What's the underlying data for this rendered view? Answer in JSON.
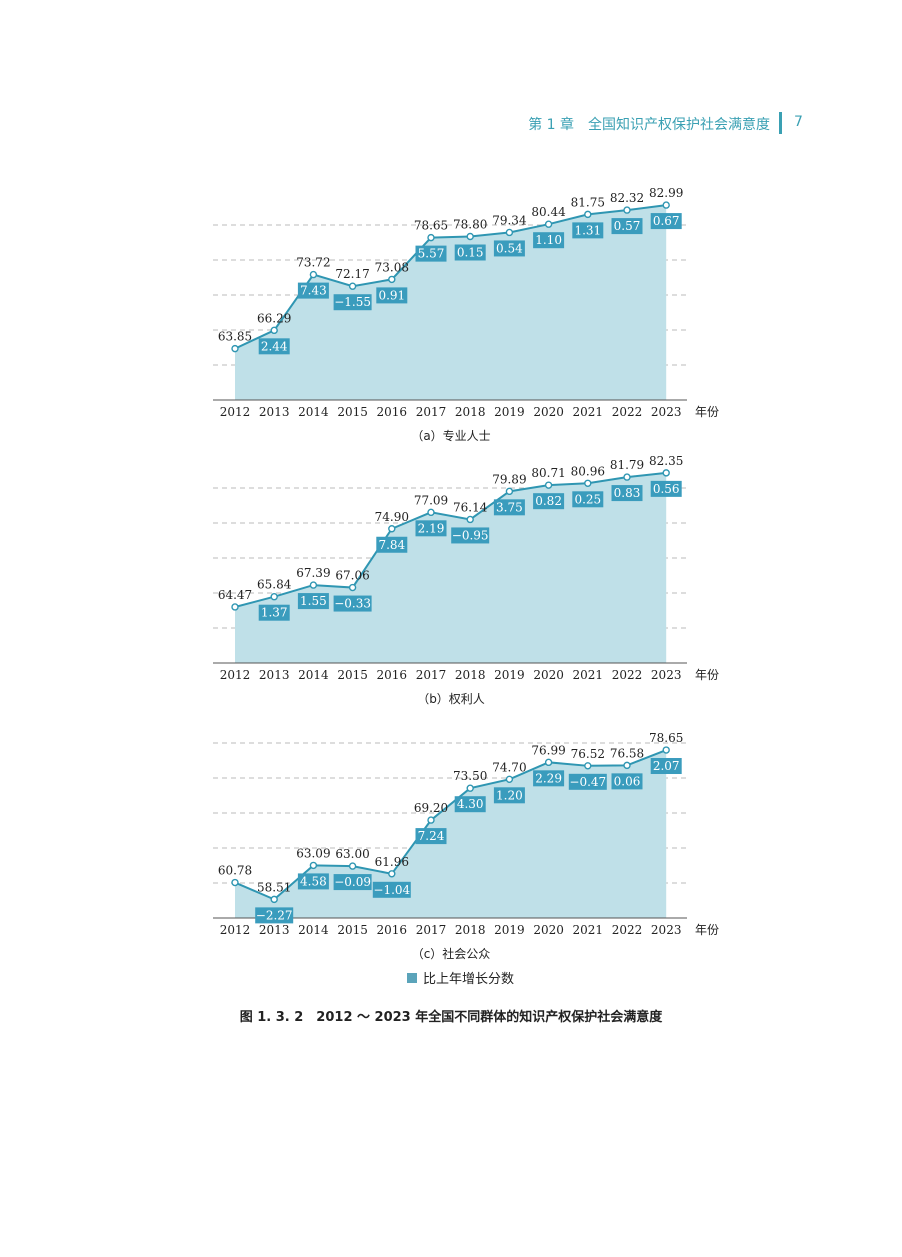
{
  "header": {
    "chapter_text": "第 1 章　全国知识产权保护社会满意度",
    "page_number": "7"
  },
  "legend": {
    "label": "比上年增长分数",
    "color": "#5ba4ba"
  },
  "figure_caption": "图 1. 3. 2　2012 ～ 2023 年全国不同群体的知识产权保护社会满意度",
  "colors": {
    "area_fill": "#bfe0e8",
    "line": "#2f96b2",
    "badge": "#3a9cbd",
    "grid": "#bbbbbb"
  },
  "chart_data": [
    {
      "type": "area",
      "caption": "（a）专业人士",
      "x_unit_label": "年份",
      "x": [
        "2012",
        "2013",
        "2014",
        "2015",
        "2016",
        "2017",
        "2018",
        "2019",
        "2020",
        "2021",
        "2022",
        "2023"
      ],
      "values": [
        63.85,
        66.29,
        73.72,
        72.17,
        73.08,
        78.65,
        78.8,
        79.34,
        80.44,
        81.75,
        82.32,
        82.99
      ],
      "value_labels": [
        "63.85",
        "66.29",
        "73.72",
        "72.17",
        "73.08",
        "78.65",
        "78.80",
        "79.34",
        "80.44",
        "81.75",
        "82.32",
        "82.99"
      ],
      "change_labels": [
        "",
        "2.44",
        "7.43",
        "−1.55",
        "0.91",
        "5.57",
        "0.15",
        "0.54",
        "1.10",
        "1.31",
        "0.57",
        "0.67"
      ],
      "ylim": [
        57,
        83
      ],
      "grid": true
    },
    {
      "type": "area",
      "caption": "（b）权利人",
      "x_unit_label": "年份",
      "x": [
        "2012",
        "2013",
        "2014",
        "2015",
        "2016",
        "2017",
        "2018",
        "2019",
        "2020",
        "2021",
        "2022",
        "2023"
      ],
      "values": [
        64.47,
        65.84,
        67.39,
        67.06,
        74.9,
        77.09,
        76.14,
        79.89,
        80.71,
        80.96,
        81.79,
        82.35
      ],
      "value_labels": [
        "64.47",
        "65.84",
        "67.39",
        "67.06",
        "74.90",
        "77.09",
        "76.14",
        "79.89",
        "80.71",
        "80.96",
        "81.79",
        "82.35"
      ],
      "change_labels": [
        "",
        "1.37",
        "1.55",
        "−0.33",
        "7.84",
        "2.19",
        "−0.95",
        "3.75",
        "0.82",
        "0.25",
        "0.83",
        "0.56"
      ],
      "ylim": [
        57,
        83
      ],
      "grid": true
    },
    {
      "type": "area",
      "caption": "（c）社会公众",
      "x_unit_label": "年份",
      "x": [
        "2012",
        "2013",
        "2014",
        "2015",
        "2016",
        "2017",
        "2018",
        "2019",
        "2020",
        "2021",
        "2022",
        "2023"
      ],
      "values": [
        60.78,
        58.51,
        63.09,
        63.0,
        61.96,
        69.2,
        73.5,
        74.7,
        76.99,
        76.52,
        76.58,
        78.65
      ],
      "value_labels": [
        "60.78",
        "58.51",
        "63.09",
        "63.00",
        "61.96",
        "69.20",
        "73.50",
        "74.70",
        "76.99",
        "76.52",
        "76.58",
        "78.65"
      ],
      "change_labels": [
        "",
        "−2.27",
        "4.58",
        "−0.09",
        "−1.04",
        "7.24",
        "4.30",
        "1.20",
        "2.29",
        "−0.47",
        "0.06",
        "2.07"
      ],
      "ylim": [
        56,
        80
      ],
      "grid": true
    }
  ]
}
